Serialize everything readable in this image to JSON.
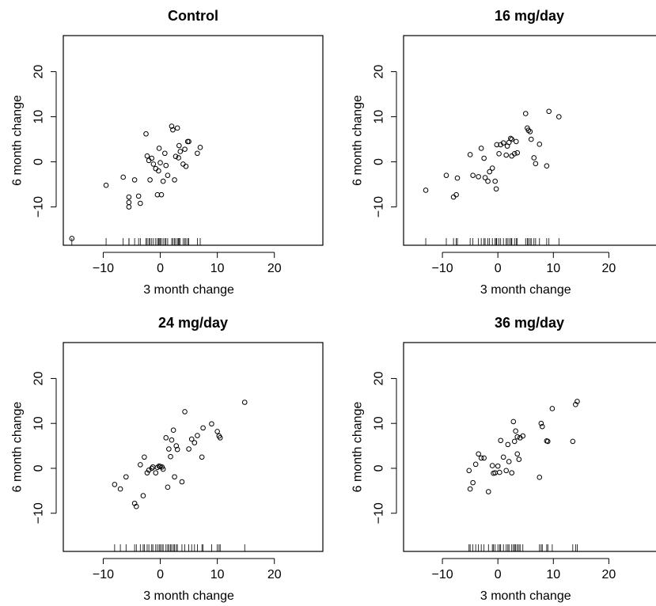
{
  "chart_data": [
    {
      "type": "scatter",
      "title": "Control",
      "xlabel": "3 month change",
      "ylabel": "6 month change",
      "xlim": [
        -17,
        28.5
      ],
      "ylim": [
        -18.5,
        28
      ],
      "xticks": [
        -10,
        0,
        10,
        20
      ],
      "yticks": [
        -10,
        0,
        10,
        20
      ],
      "x": [
        -15.5,
        -9.5,
        -6.5,
        -5.5,
        -5.5,
        -5.5,
        -4.5,
        -3.8,
        -3.5,
        -2.5,
        -2.3,
        -2.0,
        -1.8,
        -1.5,
        -1.2,
        -0.8,
        -0.5,
        -0.3,
        -0.2,
        0.0,
        0.2,
        0.5,
        0.8,
        1.0,
        1.3,
        2.0,
        2.2,
        2.5,
        2.7,
        3.0,
        3.2,
        3.3,
        3.5,
        4.0,
        4.3,
        4.5,
        4.8,
        5.0,
        6.5,
        7.0
      ],
      "y": [
        -17.0,
        -5.2,
        -3.4,
        -7.8,
        -9.0,
        -10.0,
        -4.0,
        -7.6,
        -9.2,
        6.2,
        1.3,
        0.3,
        -4.0,
        0.8,
        -0.5,
        -1.5,
        -7.3,
        -2.0,
        3.0,
        -0.2,
        -7.3,
        -4.3,
        1.9,
        -0.8,
        -3.0,
        7.9,
        7.1,
        -4.0,
        1.2,
        7.5,
        0.9,
        3.6,
        2.3,
        -0.5,
        2.8,
        -1.0,
        4.5,
        4.5,
        1.9,
        3.2
      ]
    },
    {
      "type": "scatter",
      "title": "16 mg/day",
      "xlabel": "3 month change",
      "ylabel": "6 month change",
      "xlim": [
        -17,
        28.5
      ],
      "ylim": [
        -18.5,
        28
      ],
      "xticks": [
        -10,
        0,
        10,
        20
      ],
      "yticks": [
        -10,
        0,
        10,
        20
      ],
      "x": [
        -13.0,
        -9.3,
        -8.0,
        -7.5,
        -7.3,
        -5.0,
        -4.5,
        -3.5,
        -3.0,
        -2.5,
        -2.3,
        -1.8,
        -1.5,
        -1.0,
        -0.5,
        -0.3,
        -0.2,
        0.2,
        0.5,
        1.0,
        1.5,
        1.7,
        2.0,
        2.3,
        2.5,
        2.5,
        3.0,
        3.3,
        3.5,
        5.0,
        5.3,
        5.5,
        5.8,
        6.0,
        6.5,
        6.8,
        7.5,
        8.8,
        9.2,
        11.0
      ],
      "y": [
        -6.3,
        -3.0,
        -7.8,
        -7.3,
        -3.6,
        1.6,
        -3.0,
        -3.3,
        3.0,
        0.8,
        -3.5,
        -4.3,
        -2.2,
        -1.4,
        -4.3,
        -6.0,
        3.8,
        1.8,
        3.8,
        4.2,
        1.5,
        3.5,
        4.3,
        5.2,
        5.0,
        1.3,
        1.8,
        4.5,
        2.0,
        10.7,
        7.5,
        7.0,
        6.7,
        5.0,
        0.9,
        -0.4,
        3.9,
        -0.9,
        11.2,
        10.0
      ]
    },
    {
      "type": "scatter",
      "title": "24 mg/day",
      "xlabel": "3 month change",
      "ylabel": "6 month change",
      "xlim": [
        -17,
        28.5
      ],
      "ylim": [
        -18.5,
        28
      ],
      "xticks": [
        -10,
        0,
        10,
        20
      ],
      "yticks": [
        -10,
        0,
        10,
        20
      ],
      "x": [
        -8.0,
        -7.0,
        -6.0,
        -4.5,
        -4.2,
        -3.5,
        -3.0,
        -2.8,
        -2.3,
        -2.0,
        -1.5,
        -1.3,
        -0.8,
        -0.5,
        -0.2,
        0.0,
        0.3,
        0.5,
        1.0,
        1.3,
        1.5,
        1.8,
        2.0,
        2.3,
        2.5,
        2.8,
        3.0,
        3.8,
        4.3,
        5.0,
        5.5,
        6.0,
        6.5,
        7.3,
        7.5,
        9.0,
        10.0,
        10.3,
        10.5,
        14.8
      ],
      "y": [
        -3.6,
        -4.6,
        -1.9,
        -7.8,
        -8.5,
        0.8,
        -6.1,
        2.5,
        -1.0,
        -0.4,
        0.0,
        0.3,
        -1.0,
        0.2,
        0.5,
        0.4,
        0.3,
        -0.2,
        6.8,
        -4.2,
        4.3,
        2.6,
        6.3,
        8.5,
        -1.9,
        5.0,
        4.2,
        -3.0,
        12.6,
        4.3,
        6.5,
        5.7,
        7.3,
        2.5,
        9.0,
        9.9,
        8.2,
        7.2,
        6.8,
        14.7
      ]
    },
    {
      "type": "scatter",
      "title": "36 mg/day",
      "xlabel": "3 month change",
      "ylabel": "6 month change",
      "xlim": [
        -17,
        28.5
      ],
      "ylim": [
        -18.5,
        28
      ],
      "xticks": [
        -10,
        0,
        10,
        20
      ],
      "yticks": [
        -10,
        0,
        10,
        20
      ],
      "x": [
        -5.2,
        -5.0,
        -4.5,
        -4.0,
        -3.5,
        -3.0,
        -2.5,
        -1.7,
        -1.0,
        -0.8,
        -0.5,
        0.0,
        0.3,
        0.5,
        1.0,
        1.5,
        1.8,
        2.0,
        2.5,
        2.8,
        3.0,
        3.2,
        3.5,
        3.5,
        3.8,
        4.0,
        4.5,
        7.5,
        7.8,
        8.0,
        8.8,
        9.0,
        9.8,
        13.5,
        14.0,
        14.3
      ],
      "y": [
        -0.5,
        -4.6,
        -3.2,
        0.9,
        3.2,
        2.3,
        2.3,
        -5.2,
        0.6,
        -1.1,
        -1.0,
        0.5,
        -0.9,
        6.2,
        2.5,
        -0.5,
        5.3,
        1.5,
        -1.0,
        10.4,
        6.0,
        8.3,
        7.0,
        3.2,
        2.0,
        6.8,
        7.2,
        -2.0,
        10.0,
        9.3,
        6.1,
        6.0,
        13.3,
        6.0,
        14.2,
        14.9
      ]
    }
  ]
}
